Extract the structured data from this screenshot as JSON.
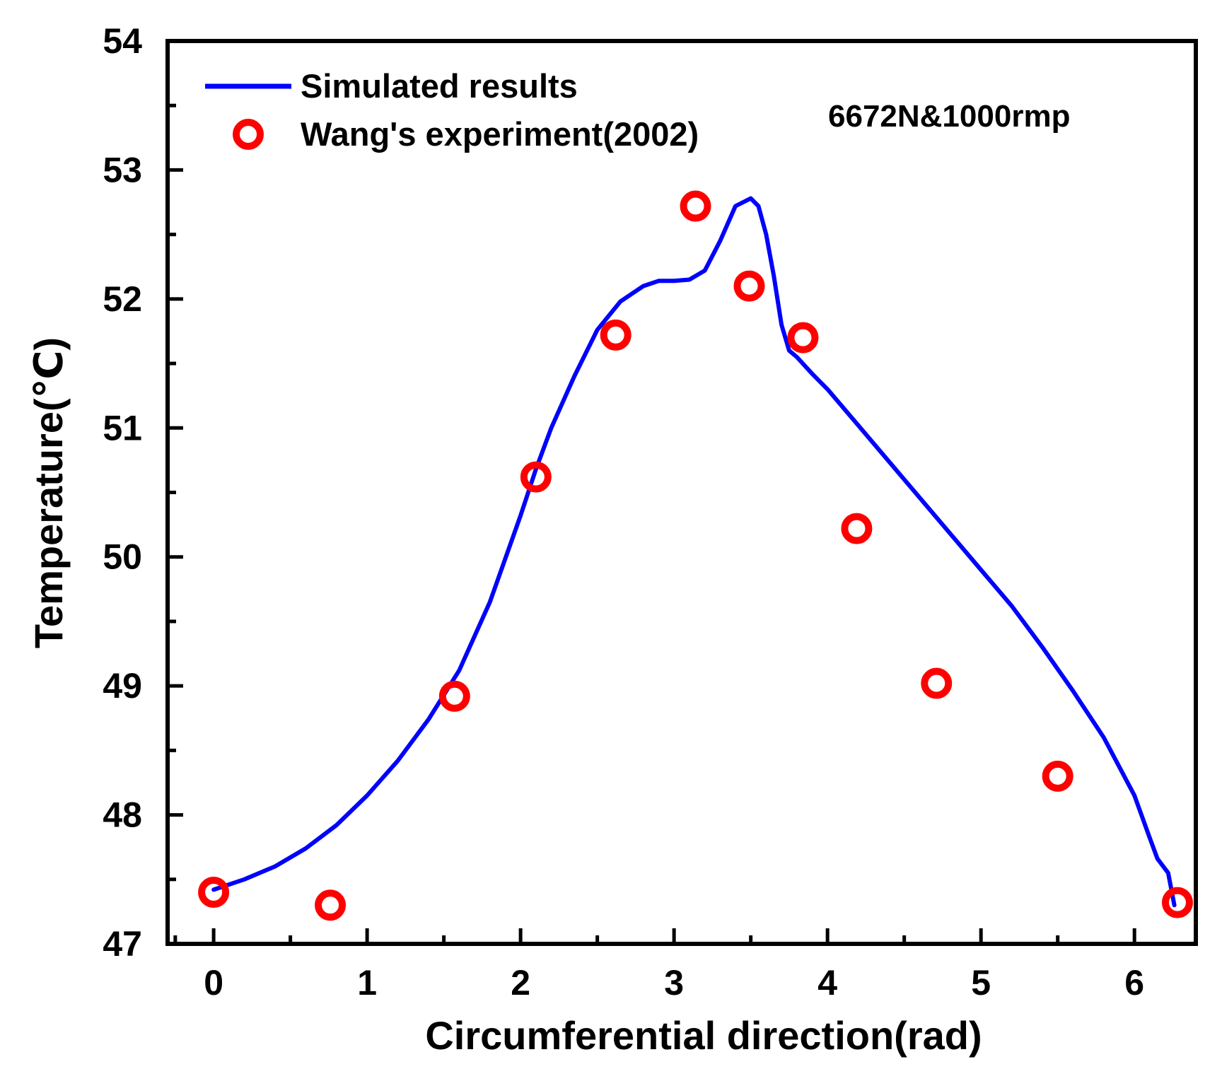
{
  "chart_data": {
    "type": "line",
    "title": "",
    "xlabel": "Circumferential direction(rad)",
    "ylabel": "Temperature(℃)",
    "xlim": [
      -0.3,
      6.4
    ],
    "ylim": [
      47,
      54
    ],
    "x_ticks": [
      0,
      1,
      2,
      3,
      4,
      5,
      6
    ],
    "x_tick_labels": [
      "0",
      "1",
      "2",
      "3",
      "4",
      "5",
      "6"
    ],
    "y_ticks": [
      47,
      48,
      49,
      50,
      51,
      52,
      53,
      54
    ],
    "y_tick_labels": [
      "47",
      "48",
      "49",
      "50",
      "51",
      "52",
      "53",
      "54"
    ],
    "grid": false,
    "legend_position": "top-left",
    "annotation": "6672N&1000rmp",
    "series": [
      {
        "name": "Simulated results",
        "style": "line",
        "color": "#0000ff",
        "x": [
          0,
          0.2,
          0.4,
          0.6,
          0.8,
          1.0,
          1.2,
          1.4,
          1.6,
          1.8,
          2.0,
          2.1,
          2.2,
          2.35,
          2.5,
          2.65,
          2.8,
          2.9,
          3.0,
          3.1,
          3.2,
          3.3,
          3.4,
          3.5,
          3.55,
          3.6,
          3.65,
          3.7,
          3.75,
          3.8,
          3.9,
          4.0,
          4.2,
          4.4,
          4.6,
          4.8,
          5.0,
          5.2,
          5.4,
          5.6,
          5.8,
          6.0,
          6.1,
          6.15,
          6.22,
          6.26
        ],
        "y": [
          47.42,
          47.5,
          47.6,
          47.74,
          47.92,
          48.15,
          48.42,
          48.74,
          49.12,
          49.65,
          50.32,
          50.68,
          51.0,
          51.4,
          51.76,
          51.98,
          52.1,
          52.14,
          52.14,
          52.15,
          52.22,
          52.45,
          52.72,
          52.78,
          52.72,
          52.5,
          52.18,
          51.8,
          51.6,
          51.55,
          51.42,
          51.3,
          51.02,
          50.74,
          50.46,
          50.18,
          49.9,
          49.62,
          49.3,
          48.96,
          48.6,
          48.15,
          47.82,
          47.66,
          47.55,
          47.3
        ]
      },
      {
        "name": "Wang's experiment(2002)",
        "style": "scatter",
        "color": "#ff0000",
        "marker": "open-circle",
        "x": [
          0,
          0.76,
          1.57,
          2.1,
          2.62,
          3.14,
          3.49,
          3.84,
          4.19,
          4.71,
          5.5,
          6.28
        ],
        "y": [
          47.4,
          47.3,
          48.92,
          50.62,
          51.72,
          52.72,
          52.1,
          51.7,
          50.22,
          49.02,
          48.3,
          47.32
        ]
      }
    ]
  }
}
